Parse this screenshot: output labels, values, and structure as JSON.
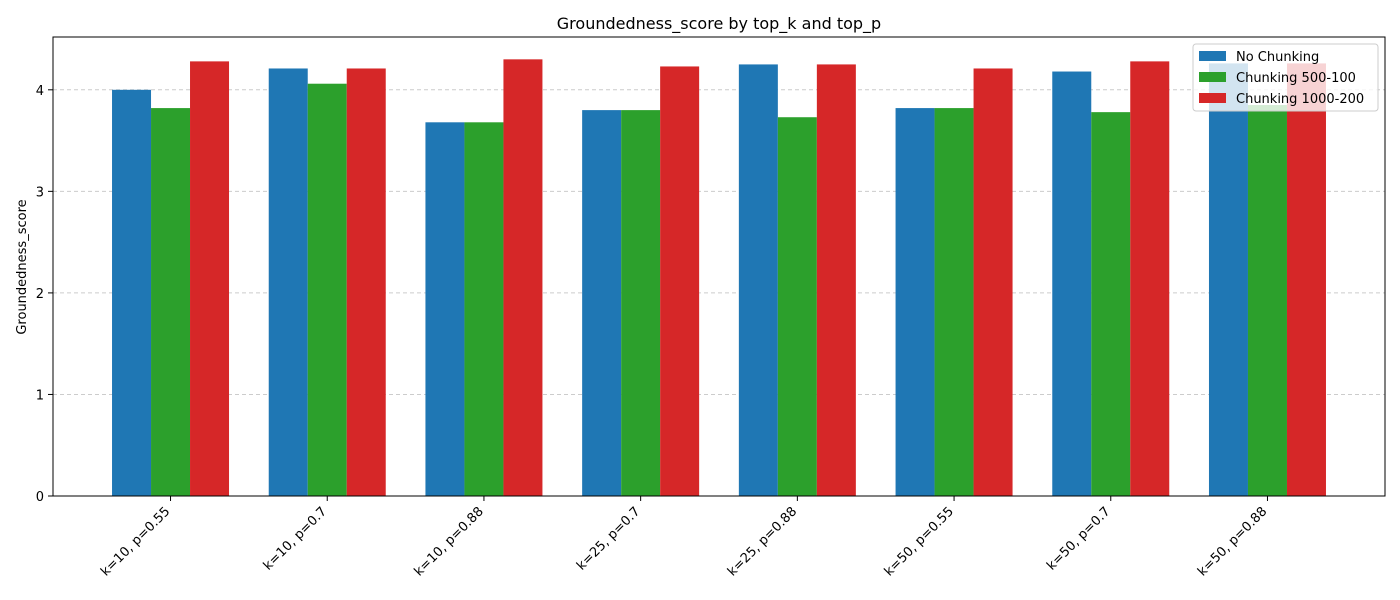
{
  "chart_data": {
    "type": "bar",
    "title": "Groundedness_score by top_k and top_p",
    "xlabel": "",
    "ylabel": "Groundedness_score",
    "categories": [
      "k=10, p=0.55",
      "k=10, p=0.7",
      "k=10, p=0.88",
      "k=25, p=0.7",
      "k=25, p=0.88",
      "k=50, p=0.55",
      "k=50, p=0.7",
      "k=50, p=0.88"
    ],
    "series": [
      {
        "name": "No Chunking",
        "color": "#1f77b4",
        "values": [
          4.0,
          4.21,
          3.68,
          3.8,
          4.25,
          3.82,
          4.18,
          4.26
        ]
      },
      {
        "name": "Chunking 500-100",
        "color": "#2ca02c",
        "values": [
          3.82,
          4.06,
          3.68,
          3.8,
          3.73,
          3.82,
          3.78,
          3.85
        ]
      },
      {
        "name": "Chunking 1000-200",
        "color": "#d62728",
        "values": [
          4.28,
          4.21,
          4.3,
          4.23,
          4.25,
          4.21,
          4.28,
          4.26
        ]
      }
    ],
    "ylim": [
      0,
      4.52
    ],
    "yticks": [
      0,
      1,
      2,
      3,
      4
    ],
    "grid": "y-dashed",
    "legend_position": "top-right"
  }
}
